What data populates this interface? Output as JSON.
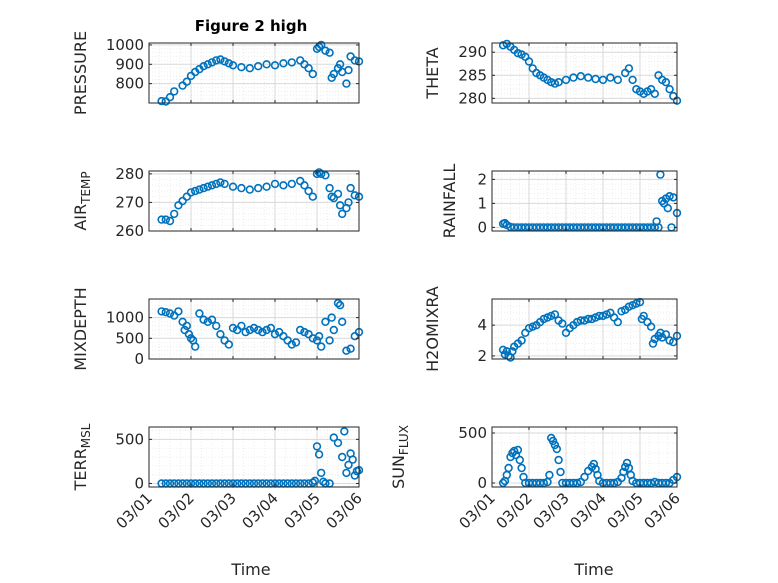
{
  "figure": {
    "title": "Figure 2 high"
  },
  "style": {
    "marker_color": "#0072BD",
    "axis_color": "#262626",
    "grid_color": "#d9d9d9"
  },
  "chart_data": [
    {
      "type": "scatter",
      "ylabel": "PRESSURE",
      "ylabel_sub": null,
      "xlim": [
        0,
        5
      ],
      "ylim": [
        700,
        1010
      ],
      "yticks": [
        800,
        900,
        1000
      ],
      "ytick_labels": [
        "800",
        "900",
        "1000"
      ],
      "xticks": [
        0,
        1,
        2,
        3,
        4,
        5
      ],
      "xtick_labels": [
        "03/01",
        "03/02",
        "03/03",
        "03/04",
        "03/05",
        "03/06"
      ],
      "show_xtick_labels": false,
      "grid": true,
      "minor_grid": true,
      "x": [
        0.3,
        0.4,
        0.5,
        0.6,
        0.8,
        0.9,
        1.0,
        1.1,
        1.2,
        1.3,
        1.4,
        1.5,
        1.6,
        1.7,
        1.8,
        1.9,
        2.0,
        2.2,
        2.4,
        2.6,
        2.8,
        3.0,
        3.2,
        3.4,
        3.6,
        3.7,
        3.8,
        3.9,
        4.0,
        4.05,
        4.1,
        4.2,
        4.3,
        4.35,
        4.4,
        4.5,
        4.55,
        4.6,
        4.7,
        4.75,
        4.8,
        4.9,
        5.0
      ],
      "y": [
        710,
        708,
        730,
        760,
        790,
        810,
        840,
        860,
        875,
        890,
        900,
        910,
        920,
        925,
        915,
        905,
        895,
        885,
        880,
        890,
        900,
        895,
        905,
        910,
        920,
        900,
        880,
        850,
        980,
        990,
        1000,
        970,
        960,
        830,
        850,
        880,
        900,
        860,
        800,
        870,
        940,
        920,
        915
      ]
    },
    {
      "type": "scatter",
      "ylabel": "THETA",
      "ylabel_sub": null,
      "xlim": [
        0,
        5
      ],
      "ylim": [
        279,
        292
      ],
      "yticks": [
        280,
        285,
        290
      ],
      "ytick_labels": [
        "280",
        "285",
        "290"
      ],
      "xticks": [
        0,
        1,
        2,
        3,
        4,
        5
      ],
      "xtick_labels": [
        "03/01",
        "03/02",
        "03/03",
        "03/04",
        "03/05",
        "03/06"
      ],
      "show_xtick_labels": false,
      "grid": true,
      "minor_grid": true,
      "x": [
        0.3,
        0.4,
        0.5,
        0.6,
        0.7,
        0.8,
        0.9,
        1.0,
        1.1,
        1.2,
        1.3,
        1.4,
        1.5,
        1.6,
        1.7,
        1.8,
        2.0,
        2.2,
        2.4,
        2.6,
        2.8,
        3.0,
        3.2,
        3.4,
        3.6,
        3.7,
        3.8,
        3.9,
        4.0,
        4.1,
        4.2,
        4.3,
        4.4,
        4.5,
        4.6,
        4.7,
        4.8,
        4.9,
        5.0
      ],
      "y": [
        291.5,
        291.8,
        291.2,
        290.5,
        289.8,
        289.5,
        289.0,
        288.0,
        286.5,
        285.5,
        285.0,
        284.5,
        284.0,
        283.5,
        283.2,
        283.5,
        284.0,
        284.5,
        284.8,
        284.5,
        284.2,
        284.0,
        284.5,
        284.0,
        285.5,
        286.5,
        284.0,
        282.0,
        281.5,
        281.0,
        281.5,
        282.0,
        281.0,
        285.0,
        284.0,
        283.5,
        282.0,
        280.5,
        279.5
      ]
    },
    {
      "type": "scatter",
      "ylabel": "AIR",
      "ylabel_sub": "TEMP",
      "xlim": [
        0,
        5
      ],
      "ylim": [
        260,
        281
      ],
      "yticks": [
        260,
        270,
        280
      ],
      "ytick_labels": [
        "260",
        "270",
        "280"
      ],
      "xticks": [
        0,
        1,
        2,
        3,
        4,
        5
      ],
      "xtick_labels": [
        "03/01",
        "03/02",
        "03/03",
        "03/04",
        "03/05",
        "03/06"
      ],
      "show_xtick_labels": false,
      "grid": true,
      "minor_grid": true,
      "x": [
        0.3,
        0.4,
        0.5,
        0.6,
        0.7,
        0.8,
        0.9,
        1.0,
        1.1,
        1.2,
        1.3,
        1.4,
        1.5,
        1.6,
        1.7,
        1.8,
        2.0,
        2.2,
        2.4,
        2.6,
        2.8,
        3.0,
        3.2,
        3.4,
        3.6,
        3.7,
        3.8,
        3.9,
        4.0,
        4.05,
        4.1,
        4.2,
        4.3,
        4.35,
        4.4,
        4.5,
        4.55,
        4.6,
        4.7,
        4.75,
        4.8,
        4.9,
        5.0
      ],
      "y": [
        264,
        264,
        263.5,
        266,
        269,
        270.5,
        272,
        273.5,
        274,
        274.5,
        275,
        275.5,
        276,
        276.5,
        277,
        276.5,
        275.5,
        275,
        274.5,
        275,
        275.5,
        276.5,
        276,
        276.5,
        277.5,
        276,
        274,
        272,
        280,
        280.5,
        280,
        279.5,
        275,
        272,
        271.5,
        273,
        269,
        266,
        268,
        270,
        275,
        272.5,
        272
      ]
    },
    {
      "type": "scatter",
      "ylabel": "RAINFALL",
      "ylabel_sub": null,
      "xlim": [
        0,
        5
      ],
      "ylim": [
        -0.15,
        2.35
      ],
      "yticks": [
        0,
        1,
        2
      ],
      "ytick_labels": [
        "0",
        "1",
        "2"
      ],
      "xticks": [
        0,
        1,
        2,
        3,
        4,
        5
      ],
      "xtick_labels": [
        "03/01",
        "03/02",
        "03/03",
        "03/04",
        "03/05",
        "03/06"
      ],
      "show_xtick_labels": false,
      "grid": true,
      "minor_grid": true,
      "x": [
        0.3,
        0.35,
        0.4,
        0.5,
        0.6,
        0.7,
        0.8,
        0.9,
        1.0,
        1.1,
        1.2,
        1.3,
        1.4,
        1.5,
        1.6,
        1.7,
        1.8,
        1.9,
        2.0,
        2.1,
        2.2,
        2.3,
        2.4,
        2.5,
        2.6,
        2.7,
        2.8,
        2.9,
        3.0,
        3.1,
        3.2,
        3.3,
        3.4,
        3.5,
        3.6,
        3.7,
        3.8,
        3.9,
        4.0,
        4.1,
        4.2,
        4.3,
        4.4,
        4.45,
        4.5,
        4.55,
        4.6,
        4.65,
        4.7,
        4.75,
        4.8,
        4.85,
        4.9,
        5.0
      ],
      "y": [
        0.15,
        0.18,
        0.1,
        0.02,
        0.0,
        0.0,
        0.0,
        0.0,
        0.0,
        0.0,
        0.0,
        0.0,
        0.0,
        0.0,
        0.0,
        0.0,
        0.0,
        0.0,
        0.0,
        0.0,
        0.0,
        0.0,
        0.0,
        0.0,
        0.0,
        0.0,
        0.0,
        0.0,
        0.0,
        0.0,
        0.0,
        0.0,
        0.0,
        0.0,
        0.0,
        0.0,
        0.0,
        0.0,
        0.0,
        0.0,
        0.0,
        0.0,
        0.0,
        0.25,
        0.0,
        2.2,
        1.1,
        1.0,
        1.2,
        0.8,
        1.3,
        0.0,
        1.25,
        0.6
      ]
    },
    {
      "type": "scatter",
      "ylabel": "MIXDEPTH",
      "ylabel_sub": null,
      "xlim": [
        0,
        5
      ],
      "ylim": [
        0,
        1450
      ],
      "yticks": [
        0,
        500,
        1000
      ],
      "ytick_labels": [
        "0",
        "500",
        "1000"
      ],
      "xticks": [
        0,
        1,
        2,
        3,
        4,
        5
      ],
      "xtick_labels": [
        "03/01",
        "03/02",
        "03/03",
        "03/04",
        "03/05",
        "03/06"
      ],
      "show_xtick_labels": false,
      "grid": true,
      "minor_grid": true,
      "x": [
        0.3,
        0.4,
        0.5,
        0.6,
        0.7,
        0.8,
        0.85,
        0.9,
        0.95,
        1.0,
        1.05,
        1.1,
        1.2,
        1.3,
        1.4,
        1.5,
        1.6,
        1.7,
        1.8,
        1.9,
        2.0,
        2.1,
        2.2,
        2.3,
        2.4,
        2.5,
        2.6,
        2.7,
        2.8,
        2.9,
        3.0,
        3.1,
        3.2,
        3.3,
        3.4,
        3.5,
        3.6,
        3.7,
        3.8,
        3.9,
        4.0,
        4.05,
        4.1,
        4.2,
        4.3,
        4.35,
        4.4,
        4.5,
        4.55,
        4.6,
        4.7,
        4.8,
        4.9,
        5.0
      ],
      "y": [
        1150,
        1130,
        1100,
        1050,
        1150,
        900,
        700,
        800,
        600,
        500,
        450,
        300,
        1100,
        950,
        900,
        950,
        800,
        600,
        450,
        350,
        750,
        700,
        800,
        650,
        700,
        750,
        700,
        650,
        700,
        750,
        600,
        650,
        550,
        450,
        350,
        400,
        700,
        650,
        600,
        500,
        450,
        550,
        300,
        900,
        450,
        1000,
        700,
        1350,
        1300,
        900,
        200,
        250,
        550,
        650
      ]
    },
    {
      "type": "scatter",
      "ylabel": "H2OMIXRA",
      "ylabel_sub": null,
      "xlim": [
        0,
        5
      ],
      "ylim": [
        1.8,
        5.7
      ],
      "yticks": [
        2,
        4
      ],
      "ytick_labels": [
        "2",
        "4"
      ],
      "xticks": [
        0,
        1,
        2,
        3,
        4,
        5
      ],
      "xtick_labels": [
        "03/01",
        "03/02",
        "03/03",
        "03/04",
        "03/05",
        "03/06"
      ],
      "show_xtick_labels": false,
      "grid": true,
      "minor_grid": true,
      "x": [
        0.3,
        0.35,
        0.4,
        0.45,
        0.5,
        0.55,
        0.6,
        0.7,
        0.8,
        0.9,
        1.0,
        1.1,
        1.2,
        1.3,
        1.4,
        1.5,
        1.6,
        1.7,
        1.8,
        1.9,
        2.0,
        2.1,
        2.2,
        2.3,
        2.4,
        2.5,
        2.6,
        2.7,
        2.8,
        2.9,
        3.0,
        3.1,
        3.2,
        3.3,
        3.4,
        3.5,
        3.6,
        3.7,
        3.8,
        3.9,
        4.0,
        4.05,
        4.1,
        4.2,
        4.3,
        4.35,
        4.4,
        4.5,
        4.55,
        4.6,
        4.7,
        4.8,
        4.9,
        5.0
      ],
      "y": [
        2.4,
        2.1,
        2.3,
        2.0,
        1.9,
        2.3,
        2.6,
        2.8,
        3.0,
        3.5,
        3.8,
        3.9,
        4.0,
        4.2,
        4.4,
        4.5,
        4.6,
        4.7,
        4.3,
        4.1,
        3.5,
        3.8,
        4.0,
        4.2,
        4.3,
        4.3,
        4.4,
        4.4,
        4.5,
        4.6,
        4.6,
        4.7,
        4.8,
        4.5,
        4.2,
        4.9,
        5.0,
        5.2,
        5.3,
        5.4,
        5.5,
        4.4,
        4.6,
        4.2,
        3.9,
        2.8,
        3.1,
        3.3,
        3.5,
        3.2,
        3.4,
        3.0,
        2.9,
        3.3
      ]
    },
    {
      "type": "scatter",
      "ylabel": "TERR",
      "ylabel_sub": "MSL",
      "xlim": [
        0,
        5
      ],
      "ylim": [
        -40,
        640
      ],
      "yticks": [
        0,
        500
      ],
      "ytick_labels": [
        "0",
        "500"
      ],
      "xticks": [
        0,
        1,
        2,
        3,
        4,
        5
      ],
      "xtick_labels": [
        "03/01",
        "03/02",
        "03/03",
        "03/04",
        "03/05",
        "03/06"
      ],
      "show_xtick_labels": true,
      "grid": true,
      "minor_grid": true,
      "x": [
        0.3,
        0.4,
        0.5,
        0.6,
        0.7,
        0.8,
        0.9,
        1.0,
        1.1,
        1.2,
        1.3,
        1.4,
        1.5,
        1.6,
        1.7,
        1.8,
        1.9,
        2.0,
        2.1,
        2.2,
        2.3,
        2.4,
        2.5,
        2.6,
        2.7,
        2.8,
        2.9,
        3.0,
        3.1,
        3.2,
        3.3,
        3.4,
        3.5,
        3.6,
        3.7,
        3.8,
        3.9,
        3.95,
        4.0,
        4.05,
        4.1,
        4.15,
        4.2,
        4.3,
        4.4,
        4.5,
        4.6,
        4.65,
        4.7,
        4.75,
        4.8,
        4.85,
        4.9,
        4.95,
        5.0
      ],
      "y": [
        0,
        0,
        0,
        0,
        0,
        0,
        0,
        0,
        0,
        0,
        0,
        0,
        0,
        0,
        0,
        0,
        0,
        0,
        0,
        0,
        0,
        0,
        0,
        0,
        0,
        0,
        0,
        0,
        0,
        0,
        0,
        0,
        0,
        0,
        0,
        0,
        10,
        30,
        420,
        330,
        120,
        20,
        0,
        0,
        520,
        460,
        300,
        590,
        120,
        210,
        340,
        270,
        90,
        140,
        150
      ]
    },
    {
      "type": "scatter",
      "ylabel": "SUN",
      "ylabel_sub": "FLUX",
      "xlim": [
        0,
        5
      ],
      "ylim": [
        -40,
        560
      ],
      "yticks": [
        0,
        500
      ],
      "ytick_labels": [
        "0",
        "500"
      ],
      "xticks": [
        0,
        1,
        2,
        3,
        4,
        5
      ],
      "xtick_labels": [
        "03/01",
        "03/02",
        "03/03",
        "03/04",
        "03/05",
        "03/06"
      ],
      "show_xtick_labels": true,
      "grid": true,
      "minor_grid": true,
      "x": [
        0.3,
        0.35,
        0.4,
        0.45,
        0.5,
        0.55,
        0.6,
        0.65,
        0.7,
        0.75,
        0.8,
        0.85,
        0.9,
        1.0,
        1.1,
        1.2,
        1.3,
        1.4,
        1.5,
        1.55,
        1.6,
        1.65,
        1.7,
        1.75,
        1.8,
        1.85,
        1.9,
        2.0,
        2.1,
        2.2,
        2.3,
        2.4,
        2.5,
        2.6,
        2.7,
        2.75,
        2.8,
        2.85,
        2.9,
        3.0,
        3.1,
        3.2,
        3.3,
        3.4,
        3.5,
        3.55,
        3.6,
        3.65,
        3.7,
        3.75,
        3.8,
        3.9,
        4.0,
        4.1,
        4.2,
        4.3,
        4.4,
        4.5,
        4.6,
        4.7,
        4.8,
        4.9,
        5.0
      ],
      "y": [
        0,
        20,
        80,
        150,
        260,
        300,
        320,
        280,
        330,
        230,
        150,
        60,
        0,
        0,
        0,
        0,
        0,
        0,
        10,
        80,
        450,
        420,
        380,
        340,
        230,
        110,
        0,
        0,
        0,
        0,
        0,
        10,
        60,
        120,
        160,
        190,
        140,
        80,
        20,
        0,
        0,
        0,
        0,
        10,
        50,
        110,
        160,
        200,
        150,
        80,
        20,
        0,
        0,
        0,
        0,
        0,
        10,
        0,
        0,
        0,
        0,
        30,
        60
      ]
    }
  ],
  "xlabel": "Time"
}
